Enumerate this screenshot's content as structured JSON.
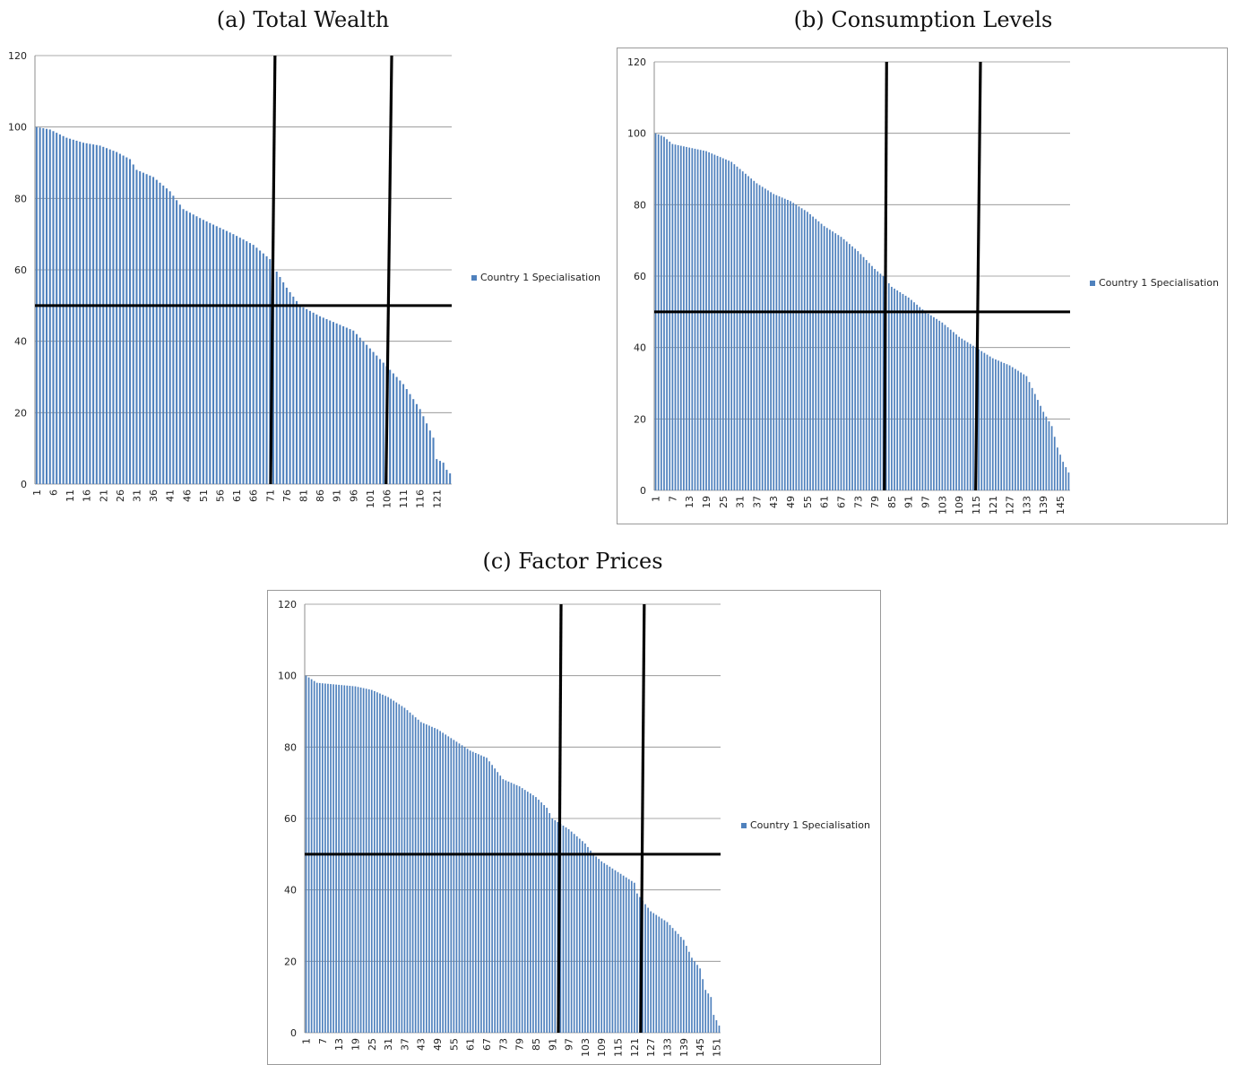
{
  "figure": {
    "captions": {
      "a": "(a) Total Wealth",
      "b": "(b) Consumption Levels",
      "c": "(c) Factor Prices"
    }
  },
  "chart_data": [
    {
      "type": "bar",
      "id": "a",
      "caption": "(a) Total Wealth",
      "series": [
        {
          "name": "Country 1 Specialisation",
          "color": "#4f81bd"
        }
      ],
      "n": 125,
      "x_tick_labels": [
        "1",
        "6",
        "11",
        "16",
        "21",
        "26",
        "31",
        "36",
        "41",
        "46",
        "51",
        "56",
        "61",
        "66",
        "71",
        "76",
        "81",
        "86",
        "91",
        "96",
        "101",
        "106",
        "111",
        "116",
        "121"
      ],
      "ylim": [
        0,
        120
      ],
      "y_ticks": [
        0,
        20,
        40,
        60,
        80,
        100,
        120
      ],
      "grid": true,
      "legend_position": "right",
      "profile": [
        [
          1,
          100
        ],
        [
          5,
          99.3
        ],
        [
          10,
          97
        ],
        [
          15,
          95.6
        ],
        [
          20,
          94.8
        ],
        [
          25,
          93
        ],
        [
          29,
          91
        ],
        [
          31,
          88
        ],
        [
          36,
          86
        ],
        [
          41,
          82
        ],
        [
          45,
          77
        ],
        [
          51,
          74
        ],
        [
          60,
          70
        ],
        [
          66,
          67
        ],
        [
          71,
          63
        ],
        [
          72,
          61
        ],
        [
          76,
          55
        ],
        [
          80,
          50
        ],
        [
          86,
          47
        ],
        [
          91,
          45
        ],
        [
          96,
          43
        ],
        [
          101,
          38
        ],
        [
          106,
          33
        ],
        [
          111,
          28
        ],
        [
          116,
          21
        ],
        [
          120,
          13
        ],
        [
          121,
          7
        ],
        [
          123,
          6
        ],
        [
          124,
          4
        ],
        [
          125,
          3
        ]
      ],
      "overlay": {
        "horizontal_y": 50,
        "vertical_lines": [
          [
            72.5,
            71.2
          ],
          [
            107.5,
            105.8
          ]
        ]
      }
    },
    {
      "type": "bar",
      "id": "b",
      "caption": "(b) Consumption Levels",
      "series": [
        {
          "name": "Country 1 Specialisation",
          "color": "#4f81bd"
        }
      ],
      "n": 148,
      "x_tick_labels": [
        "1",
        "7",
        "13",
        "19",
        "25",
        "31",
        "37",
        "43",
        "49",
        "55",
        "61",
        "67",
        "73",
        "79",
        "85",
        "91",
        "97",
        "103",
        "109",
        "115",
        "121",
        "127",
        "133",
        "139",
        "145"
      ],
      "ylim": [
        0,
        120
      ],
      "y_ticks": [
        0,
        20,
        40,
        60,
        80,
        100,
        120
      ],
      "grid": true,
      "legend_position": "right",
      "profile": [
        [
          1,
          100
        ],
        [
          4,
          99
        ],
        [
          7,
          97
        ],
        [
          13,
          96
        ],
        [
          19,
          95
        ],
        [
          25,
          93
        ],
        [
          28,
          92
        ],
        [
          31,
          90
        ],
        [
          37,
          86
        ],
        [
          43,
          83
        ],
        [
          49,
          81
        ],
        [
          55,
          78
        ],
        [
          61,
          74
        ],
        [
          67,
          71
        ],
        [
          73,
          67
        ],
        [
          79,
          62
        ],
        [
          82,
          60
        ],
        [
          85,
          57
        ],
        [
          91,
          54
        ],
        [
          97,
          50
        ],
        [
          103,
          47
        ],
        [
          109,
          43
        ],
        [
          115,
          40
        ],
        [
          121,
          37
        ],
        [
          127,
          35
        ],
        [
          133,
          32
        ],
        [
          136,
          27
        ],
        [
          139,
          22
        ],
        [
          142,
          18
        ],
        [
          144,
          12
        ],
        [
          146,
          8
        ],
        [
          148,
          5
        ]
      ],
      "overlay": {
        "horizontal_y": 50,
        "vertical_lines": [
          [
            83.2,
            82.4
          ],
          [
            116.6,
            114.9
          ]
        ]
      }
    },
    {
      "type": "bar",
      "id": "c",
      "caption": "(c) Factor Prices",
      "series": [
        {
          "name": "Country 1 Specialisation",
          "color": "#4f81bd"
        }
      ],
      "n": 152,
      "x_tick_labels": [
        "1",
        "7",
        "13",
        "19",
        "25",
        "31",
        "37",
        "43",
        "49",
        "55",
        "61",
        "67",
        "73",
        "79",
        "85",
        "91",
        "97",
        "103",
        "109",
        "115",
        "121",
        "127",
        "133",
        "139",
        "145",
        "151"
      ],
      "ylim": [
        0,
        120
      ],
      "y_ticks": [
        0,
        20,
        40,
        60,
        80,
        100,
        120
      ],
      "grid": true,
      "legend_position": "right",
      "profile": [
        [
          1,
          100
        ],
        [
          5,
          98
        ],
        [
          19,
          97
        ],
        [
          25,
          96
        ],
        [
          31,
          94
        ],
        [
          37,
          91
        ],
        [
          43,
          87
        ],
        [
          49,
          85
        ],
        [
          55,
          82
        ],
        [
          61,
          79
        ],
        [
          67,
          77
        ],
        [
          73,
          71
        ],
        [
          79,
          69
        ],
        [
          85,
          66
        ],
        [
          89,
          63
        ],
        [
          91,
          60
        ],
        [
          97,
          57
        ],
        [
          103,
          53
        ],
        [
          106,
          50
        ],
        [
          109,
          48
        ],
        [
          115,
          45
        ],
        [
          121,
          42
        ],
        [
          122,
          39
        ],
        [
          127,
          34
        ],
        [
          133,
          31
        ],
        [
          139,
          26
        ],
        [
          142,
          21
        ],
        [
          145,
          18
        ],
        [
          146,
          15
        ],
        [
          147,
          12
        ],
        [
          149,
          10
        ],
        [
          150,
          5
        ],
        [
          152,
          2
        ]
      ],
      "overlay": {
        "horizontal_y": 50,
        "vertical_lines": [
          [
            94.2,
            93.2
          ],
          [
            124.6,
            123.3
          ]
        ]
      }
    }
  ]
}
